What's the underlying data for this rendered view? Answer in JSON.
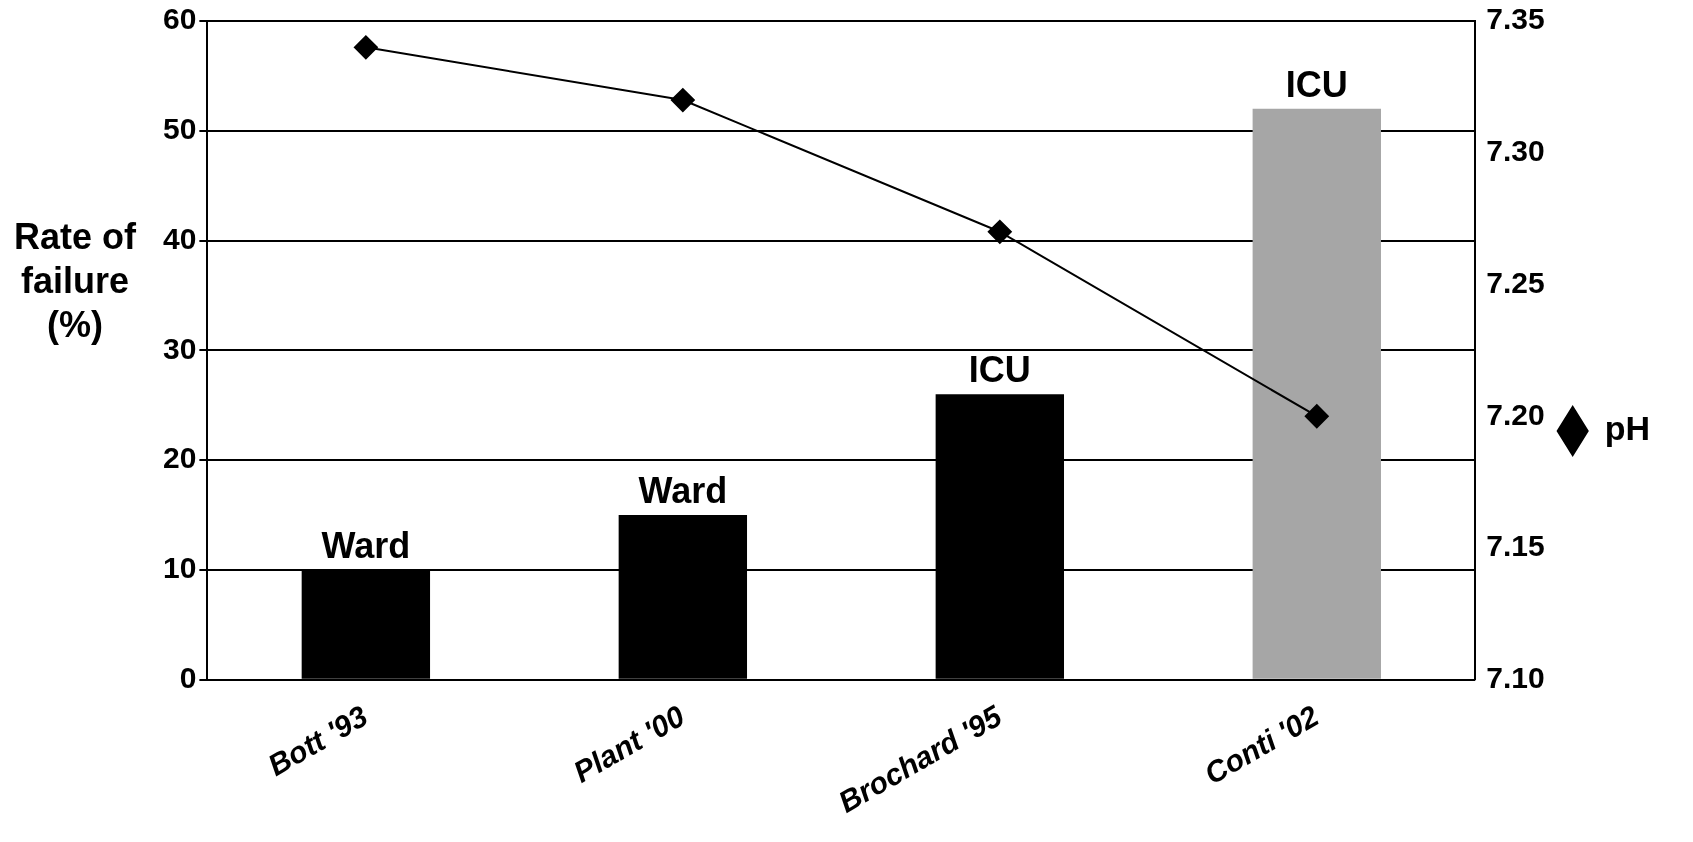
{
  "chart_data": {
    "type": "bar",
    "ylabel": "Rate of failure (%)",
    "categories": [
      "Bott '93",
      "Plant '00",
      "Brochard '95",
      "Conti '02"
    ],
    "series": [
      {
        "colors": [
          "#000000",
          "#000000",
          "#000000",
          "#a6a6a6"
        ],
        "values": [
          10,
          15,
          26,
          52
        ]
      },
      {
        "type": "line",
        "name": "pH",
        "axis": "y2",
        "color": "#000000",
        "values": [
          7.34,
          7.32,
          7.27,
          7.2
        ]
      }
    ],
    "ylim": [
      0,
      60
    ],
    "yticks": [
      0,
      10,
      20,
      30,
      40,
      50,
      60
    ],
    "y2lim": [
      7.1,
      7.35
    ],
    "y2ticks": [
      {
        "value": 7.1,
        "label": "7.10"
      },
      7.15,
      {
        "value": 7.2,
        "label": "7.20"
      },
      7.25,
      {
        "value": 7.3,
        "label": "7.30"
      },
      7.35
    ],
    "annotations": [
      {
        "text": "Ward",
        "x": "Bott '93",
        "y": 10
      },
      {
        "text": "Ward",
        "x": "Plant '00",
        "y": 15
      },
      {
        "text": "ICU",
        "x": "Brochard '95",
        "y": 26
      },
      {
        "text": "ICU",
        "x": "Conti '02",
        "y": 52
      }
    ],
    "grid": "y",
    "legend": "right",
    "marker": "diamond",
    "line_style": "solid"
  }
}
